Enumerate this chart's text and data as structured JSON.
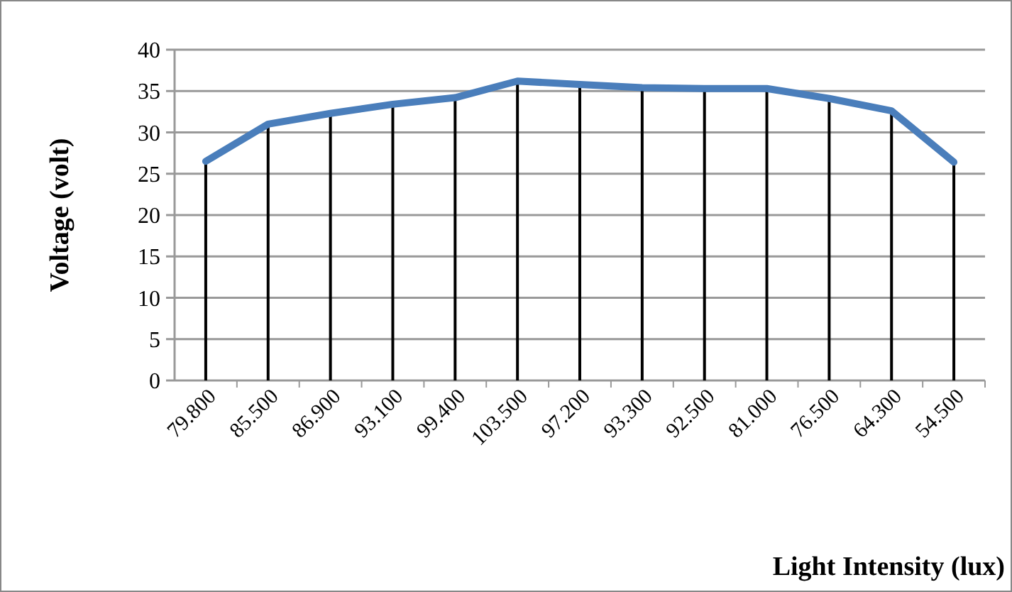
{
  "chart_data": {
    "type": "line",
    "xlabel": "Light Intensity (lux)",
    "ylabel": "Voltage (volt)",
    "categories": [
      "79.800",
      "85.500",
      "86.900",
      "93.100",
      "99.400",
      "103.500",
      "97.200",
      "93.300",
      "92.500",
      "81.000",
      "76.500",
      "64.300",
      "54.500"
    ],
    "series": [
      {
        "type": "bar",
        "color": "#000000",
        "values": [
          26.5,
          31.0,
          32.3,
          33.4,
          34.2,
          36.2,
          35.8,
          35.4,
          35.3,
          35.3,
          34.1,
          32.6,
          26.4
        ]
      },
      {
        "color": "#4a7ebb",
        "values": [
          26.5,
          31.0,
          32.3,
          33.4,
          34.2,
          36.2,
          35.8,
          35.4,
          35.3,
          35.3,
          34.1,
          32.6,
          26.4
        ]
      }
    ],
    "ylim": [
      0,
      40
    ],
    "yticks": [
      0,
      5,
      10,
      15,
      20,
      25,
      30,
      35,
      40
    ],
    "grid": "y",
    "marker": "none",
    "line_style": "solid"
  }
}
